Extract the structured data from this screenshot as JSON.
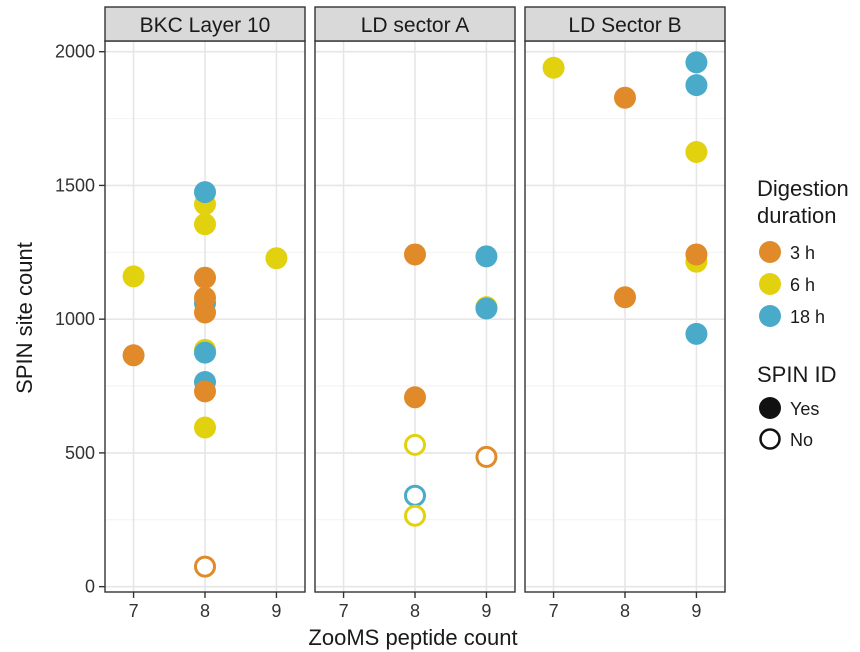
{
  "chart_data": {
    "type": "scatter",
    "xlabel": "ZooMS peptide count",
    "ylabel": "SPIN site count",
    "x_ticks": [
      "7",
      "8",
      "9"
    ],
    "xlim": [
      6.6,
      9.4
    ],
    "ylim": [
      -20,
      2040
    ],
    "y_ticks": [
      "0",
      "500",
      "1000",
      "1500",
      "2000"
    ],
    "grid": true,
    "colors": {
      "3 h": "#E08A2A",
      "6 h": "#E2D10E",
      "18 h": "#4AAAC9"
    },
    "legend": {
      "placement": "right",
      "color_title_line1": "Digestion",
      "color_title_line2": "duration",
      "color_items": [
        "3 h",
        "6 h",
        "18 h"
      ],
      "shape_title": "SPIN ID",
      "shape_items": [
        "Yes",
        "No"
      ]
    },
    "facets": [
      {
        "title": "BKC Layer 10",
        "points": [
          {
            "x": 7,
            "y": 1160,
            "duration": "6 h",
            "spin_id": "Yes"
          },
          {
            "x": 7,
            "y": 865,
            "duration": "3 h",
            "spin_id": "Yes"
          },
          {
            "x": 8,
            "y": 1430,
            "duration": "6 h",
            "spin_id": "Yes"
          },
          {
            "x": 8,
            "y": 1475,
            "duration": "18 h",
            "spin_id": "Yes"
          },
          {
            "x": 8,
            "y": 1355,
            "duration": "6 h",
            "spin_id": "Yes"
          },
          {
            "x": 8,
            "y": 1155,
            "duration": "3 h",
            "spin_id": "Yes"
          },
          {
            "x": 8,
            "y": 1060,
            "duration": "18 h",
            "spin_id": "Yes"
          },
          {
            "x": 8,
            "y": 1080,
            "duration": "3 h",
            "spin_id": "Yes"
          },
          {
            "x": 8,
            "y": 1025,
            "duration": "3 h",
            "spin_id": "Yes"
          },
          {
            "x": 8,
            "y": 885,
            "duration": "6 h",
            "spin_id": "Yes"
          },
          {
            "x": 8,
            "y": 875,
            "duration": "18 h",
            "spin_id": "Yes"
          },
          {
            "x": 8,
            "y": 765,
            "duration": "18 h",
            "spin_id": "Yes"
          },
          {
            "x": 8,
            "y": 730,
            "duration": "3 h",
            "spin_id": "Yes"
          },
          {
            "x": 8,
            "y": 595,
            "duration": "6 h",
            "spin_id": "Yes"
          },
          {
            "x": 8,
            "y": 75,
            "duration": "3 h",
            "spin_id": "No"
          },
          {
            "x": 9,
            "y": 1228,
            "duration": "6 h",
            "spin_id": "Yes"
          }
        ]
      },
      {
        "title": "LD sector A",
        "points": [
          {
            "x": 8,
            "y": 1242,
            "duration": "3 h",
            "spin_id": "Yes"
          },
          {
            "x": 8,
            "y": 708,
            "duration": "3 h",
            "spin_id": "Yes"
          },
          {
            "x": 8,
            "y": 530,
            "duration": "6 h",
            "spin_id": "No"
          },
          {
            "x": 8,
            "y": 340,
            "duration": "18 h",
            "spin_id": "No"
          },
          {
            "x": 8,
            "y": 265,
            "duration": "6 h",
            "spin_id": "No"
          },
          {
            "x": 9,
            "y": 1235,
            "duration": "18 h",
            "spin_id": "Yes"
          },
          {
            "x": 9,
            "y": 1045,
            "duration": "6 h",
            "spin_id": "Yes"
          },
          {
            "x": 9,
            "y": 1040,
            "duration": "18 h",
            "spin_id": "Yes"
          },
          {
            "x": 9,
            "y": 485,
            "duration": "3 h",
            "spin_id": "No"
          }
        ]
      },
      {
        "title": "LD Sector B",
        "points": [
          {
            "x": 7,
            "y": 1940,
            "duration": "6 h",
            "spin_id": "Yes"
          },
          {
            "x": 8,
            "y": 1828,
            "duration": "3 h",
            "spin_id": "Yes"
          },
          {
            "x": 8,
            "y": 1082,
            "duration": "3 h",
            "spin_id": "Yes"
          },
          {
            "x": 9,
            "y": 1960,
            "duration": "18 h",
            "spin_id": "Yes"
          },
          {
            "x": 9,
            "y": 1875,
            "duration": "18 h",
            "spin_id": "Yes"
          },
          {
            "x": 9,
            "y": 1625,
            "duration": "6 h",
            "spin_id": "Yes"
          },
          {
            "x": 9,
            "y": 1215,
            "duration": "6 h",
            "spin_id": "Yes"
          },
          {
            "x": 9,
            "y": 1242,
            "duration": "3 h",
            "spin_id": "Yes"
          },
          {
            "x": 9,
            "y": 945,
            "duration": "18 h",
            "spin_id": "Yes"
          }
        ]
      }
    ]
  }
}
